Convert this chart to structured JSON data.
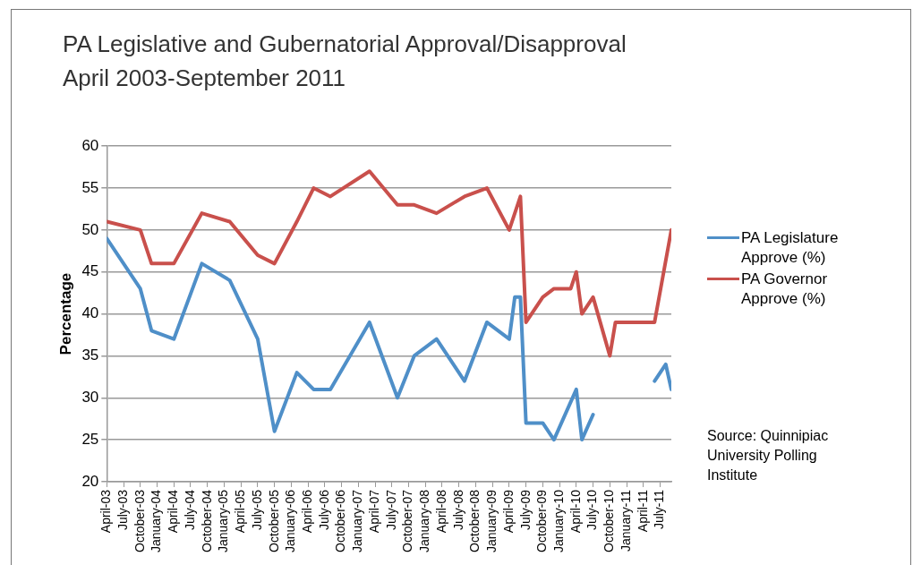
{
  "chart_data": {
    "type": "line",
    "title": "PA Legislative and Gubernatorial Approval/Disapproval",
    "subtitle": "April 2003-September 2011",
    "ylabel": "Percentage",
    "annotations": [
      "Source: Quinnipiac University Polling Institute"
    ],
    "xlim": [
      "2003-04",
      "2011-09"
    ],
    "xticks": [
      {
        "value": "2003-04",
        "label": "April-03"
      },
      {
        "value": "2003-07",
        "label": "July-03"
      },
      {
        "value": "2003-10",
        "label": "October-03"
      },
      {
        "value": "2004-01",
        "label": "January-04"
      },
      {
        "value": "2004-04",
        "label": "April-04"
      },
      {
        "value": "2004-07",
        "label": "July-04"
      },
      {
        "value": "2004-10",
        "label": "October-04"
      },
      {
        "value": "2005-01",
        "label": "January-05"
      },
      {
        "value": "2005-04",
        "label": "April-05"
      },
      {
        "value": "2005-07",
        "label": "July-05"
      },
      {
        "value": "2005-10",
        "label": "October-05"
      },
      {
        "value": "2006-01",
        "label": "January-06"
      },
      {
        "value": "2006-04",
        "label": "April-06"
      },
      {
        "value": "2006-07",
        "label": "July-06"
      },
      {
        "value": "2006-10",
        "label": "October-06"
      },
      {
        "value": "2007-01",
        "label": "January-07"
      },
      {
        "value": "2007-04",
        "label": "April-07"
      },
      {
        "value": "2007-07",
        "label": "July-07"
      },
      {
        "value": "2007-10",
        "label": "October-07"
      },
      {
        "value": "2008-01",
        "label": "January-08"
      },
      {
        "value": "2008-04",
        "label": "April-08"
      },
      {
        "value": "2008-07",
        "label": "July-08"
      },
      {
        "value": "2008-10",
        "label": "October-08"
      },
      {
        "value": "2009-01",
        "label": "January-09"
      },
      {
        "value": "2009-04",
        "label": "April-09"
      },
      {
        "value": "2009-07",
        "label": "July-09"
      },
      {
        "value": "2009-10",
        "label": "October-09"
      },
      {
        "value": "2010-01",
        "label": "January-10"
      },
      {
        "value": "2010-04",
        "label": "April-10"
      },
      {
        "value": "2010-07",
        "label": "July-10"
      },
      {
        "value": "2010-10",
        "label": "October-10"
      },
      {
        "value": "2011-01",
        "label": "January-11"
      },
      {
        "value": "2011-04",
        "label": "April-11"
      },
      {
        "value": "2011-07",
        "label": "July-11"
      }
    ],
    "ylim": [
      20,
      60
    ],
    "yticks": [
      20,
      25,
      30,
      35,
      40,
      45,
      50,
      55,
      60
    ],
    "grid": "y",
    "legend": "right",
    "marker": "none",
    "line_style": "solid",
    "series": [
      {
        "name": "PA Legislature Approve (%)",
        "color": "#4f8fc8",
        "x": [
          "2003-04",
          "2003-10",
          "2003-12",
          "2004-04",
          "2004-09",
          "2005-02",
          "2005-07",
          "2005-10",
          "2006-02",
          "2006-05",
          "2006-08",
          "2007-03",
          "2007-08",
          "2007-11",
          "2008-03",
          "2008-08",
          "2008-12",
          "2009-04",
          "2009-05",
          "2009-06",
          "2009-07",
          "2009-10",
          "2009-12",
          "2010-04",
          "2010-05",
          "2010-07",
          "2010-11",
          "2011-06",
          "2011-08",
          "2011-09"
        ],
        "values": [
          49,
          43,
          38,
          37,
          46,
          44,
          37,
          26,
          33,
          31,
          31,
          39,
          30,
          35,
          37,
          32,
          39,
          37,
          42,
          42,
          27,
          27,
          25,
          31,
          25,
          28,
          null,
          32,
          34,
          31
        ]
      },
      {
        "name": "PA Governor Approve (%)",
        "color": "#c9504c",
        "x": [
          "2003-04",
          "2003-10",
          "2003-12",
          "2004-04",
          "2004-09",
          "2005-02",
          "2005-07",
          "2005-10",
          "2006-02",
          "2006-05",
          "2006-08",
          "2007-03",
          "2007-08",
          "2007-11",
          "2008-03",
          "2008-08",
          "2008-12",
          "2009-04",
          "2009-06",
          "2009-07",
          "2009-10",
          "2009-12",
          "2010-03",
          "2010-04",
          "2010-05",
          "2010-07",
          "2010-10",
          "2010-11",
          "2011-06",
          "2011-09"
        ],
        "values": [
          51,
          50,
          46,
          46,
          52,
          51,
          47,
          46,
          51,
          55,
          54,
          57,
          53,
          53,
          52,
          54,
          55,
          50,
          54,
          39,
          42,
          43,
          43,
          45,
          40,
          42,
          35,
          39,
          39,
          50
        ]
      }
    ]
  }
}
